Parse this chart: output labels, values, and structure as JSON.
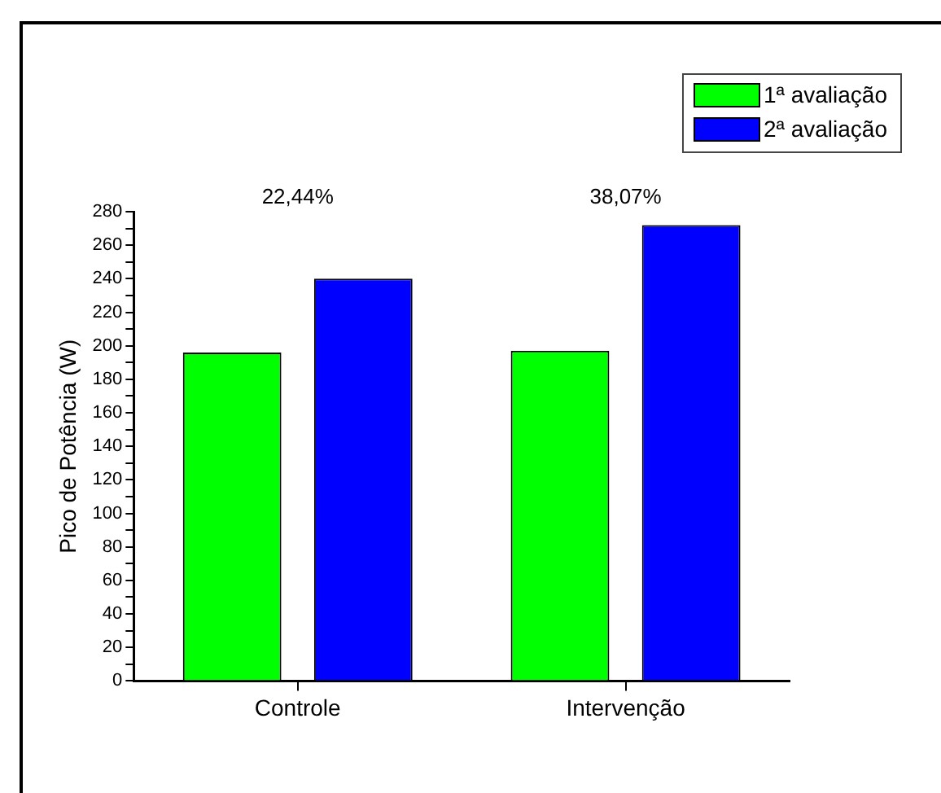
{
  "chart_data": {
    "type": "bar",
    "ylabel": "Pico de Potência (W)",
    "categories": [
      "Controle",
      "Intervenção"
    ],
    "series": [
      {
        "name": "1ª avaliação",
        "color": "#00ff00",
        "values": [
          196,
          197
        ]
      },
      {
        "name": "2ª avaliação",
        "color": "#0000ff",
        "values": [
          240,
          272
        ]
      }
    ],
    "ylim": [
      0,
      280
    ],
    "yticks": [
      0,
      {
        "value": 10,
        "label": null
      },
      20,
      {
        "value": 30,
        "label": null
      },
      40,
      {
        "value": 50,
        "label": null
      },
      60,
      {
        "value": 70,
        "label": null
      },
      80,
      {
        "value": 90,
        "label": null
      },
      100,
      {
        "value": 110,
        "label": null
      },
      120,
      {
        "value": 130,
        "label": null
      },
      140,
      {
        "value": 150,
        "label": null
      },
      160,
      {
        "value": 170,
        "label": null
      },
      180,
      {
        "value": 190,
        "label": null
      },
      200,
      {
        "value": 210,
        "label": null
      },
      220,
      {
        "value": 230,
        "label": null
      },
      240,
      {
        "value": 250,
        "label": null
      },
      260,
      {
        "value": 270,
        "label": null
      },
      280
    ],
    "annotations": [
      "22,44%",
      "38,07%"
    ],
    "legend": "top right",
    "grid": false
  }
}
